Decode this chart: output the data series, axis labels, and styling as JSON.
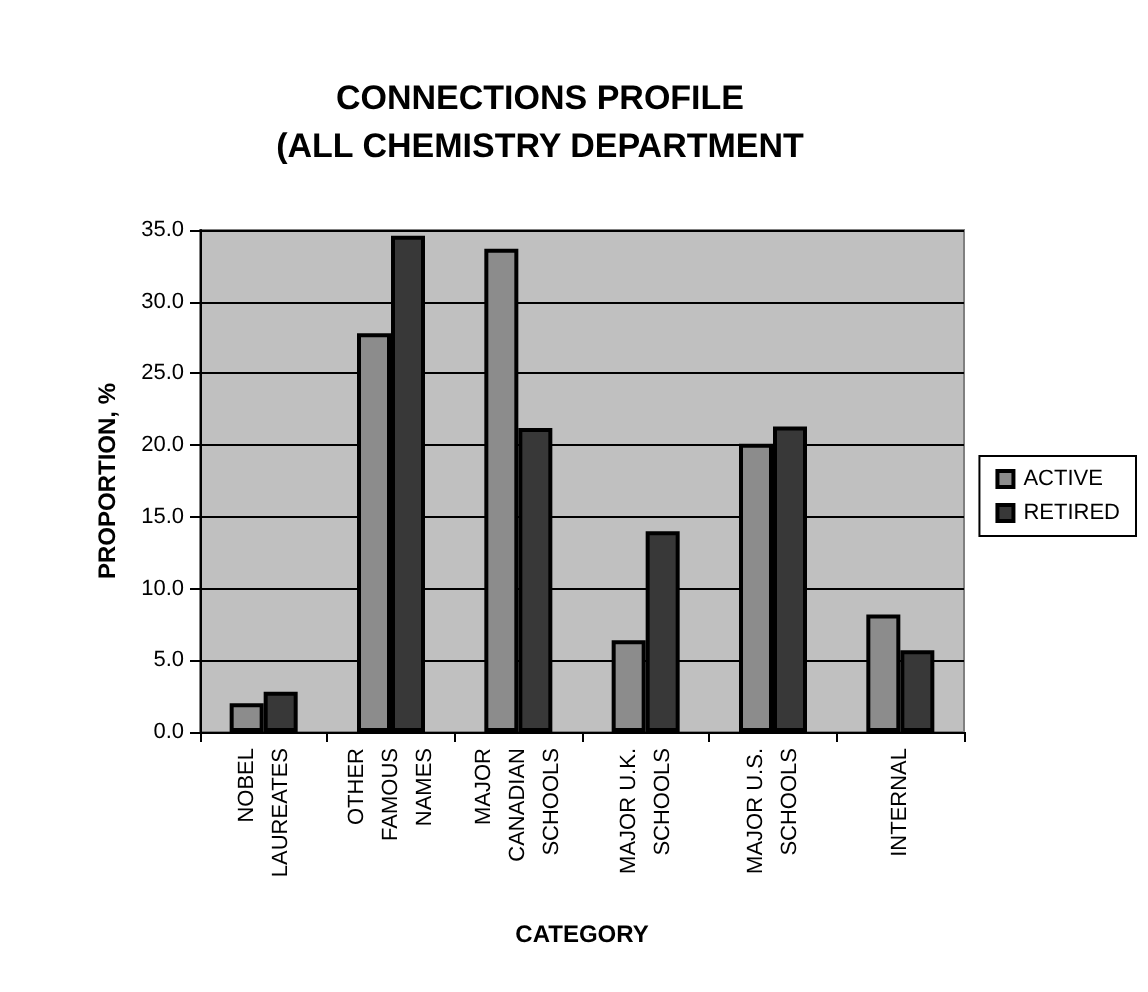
{
  "chart_data": {
    "type": "bar",
    "title": "CONNECTIONS PROFILE\n(ALL CHEMISTRY DEPARTMENT",
    "xlabel": "CATEGORY",
    "ylabel": "PROPORTION, %",
    "categories": [
      "NOBEL\nLAUREATES",
      "OTHER\nFAMOUS\nNAMES",
      "MAJOR\nCANADIAN\nSCHOOLS",
      "MAJOR U.K.\nSCHOOLS",
      "MAJOR U.S.\nSCHOOLS",
      "INTERNAL"
    ],
    "series": [
      {
        "name": "ACTIVE",
        "color": "#8c8c8c",
        "values": [
          2.0,
          27.8,
          33.7,
          6.4,
          20.1,
          8.2
        ]
      },
      {
        "name": "RETIRED",
        "color": "#383838",
        "values": [
          2.8,
          34.6,
          21.2,
          14.0,
          21.3,
          5.7
        ]
      }
    ],
    "ylim": [
      0,
      35
    ],
    "yticks": [
      {
        "value": 0,
        "label": "0.0"
      },
      {
        "value": 5,
        "label": "5.0"
      },
      {
        "value": 10,
        "label": "10.0"
      },
      {
        "value": 15,
        "label": "15.0"
      },
      {
        "value": 20,
        "label": "20.0"
      },
      {
        "value": 25,
        "label": "25.0"
      },
      {
        "value": 30,
        "label": "30.0"
      },
      {
        "value": 35,
        "label": "35.0"
      }
    ],
    "grid": "y",
    "legend": "right"
  }
}
